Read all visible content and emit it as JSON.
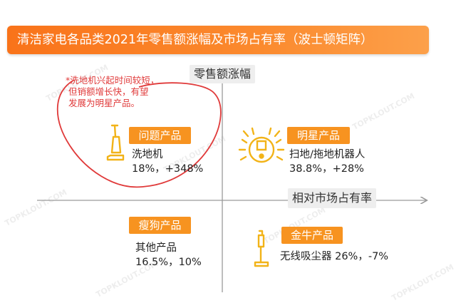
{
  "title": "清洁家电各品类2021年零售额涨幅及市场占有率（波士顿矩阵）",
  "axes": {
    "y_label": "零售额涨幅",
    "x_label": "相对市场占有率"
  },
  "note": {
    "lines": [
      "*洗地机兴起时间较短，",
      "但销额增长快，有望",
      "发展为明星产品。"
    ]
  },
  "quadrants": {
    "question": {
      "tag": "问题产品",
      "name": "洗地机",
      "stats": "18%，+348%",
      "icon": "handheld-vacuum-icon"
    },
    "star": {
      "tag": "明星产品",
      "name": "扫地/拖地机器人",
      "stats": "38.8%，+28%",
      "icon": "robot-vacuum-icon"
    },
    "dog": {
      "tag": "瘦狗产品",
      "name": "其他产品",
      "stats": "16.5%，10%"
    },
    "cow": {
      "tag": "金牛产品",
      "stats_line": "无线吸尘器 26%，-7%",
      "icon": "stick-vacuum-icon"
    }
  },
  "watermark": "TOPKLOUT.COM",
  "colors": {
    "accent": "#f79320",
    "note_red": "#e03a3a",
    "axis_gray": "#999999"
  }
}
